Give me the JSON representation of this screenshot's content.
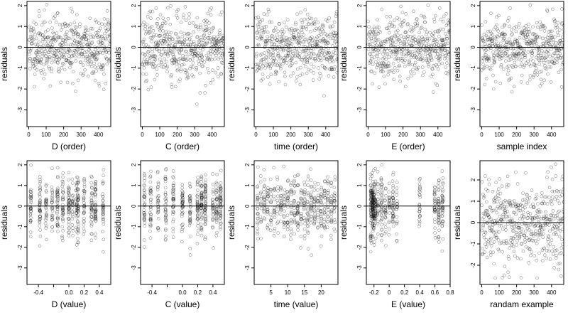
{
  "chart_data": [
    {
      "type": "scatter",
      "xlabel": "D (order)",
      "ylabel": "residuals",
      "xlim": [
        -10,
        470
      ],
      "ylim": [
        -3.8,
        2.2
      ],
      "xticks": [
        0,
        100,
        200,
        300,
        400
      ],
      "yticks": [
        -3,
        -2,
        -1,
        0,
        1,
        2
      ],
      "hline": 0,
      "grid": false,
      "n": 480,
      "seed": 11,
      "x_mode": "index",
      "distribution": "normal-sd-0.75"
    },
    {
      "type": "scatter",
      "xlabel": "C (order)",
      "ylabel": "residuals",
      "xlim": [
        -10,
        470
      ],
      "ylim": [
        -3.8,
        2.2
      ],
      "xticks": [
        0,
        100,
        200,
        300,
        400
      ],
      "yticks": [
        -3,
        -2,
        -1,
        0,
        1,
        2
      ],
      "hline": 0,
      "grid": false,
      "n": 480,
      "seed": 23,
      "x_mode": "index",
      "distribution": "normal-sd-0.75"
    },
    {
      "type": "scatter",
      "xlabel": "time (order)",
      "ylabel": "residuals",
      "xlim": [
        -10,
        470
      ],
      "ylim": [
        -3.8,
        2.2
      ],
      "xticks": [
        0,
        100,
        200,
        300,
        400
      ],
      "yticks": [
        -3,
        -2,
        -1,
        0,
        1,
        2
      ],
      "hline": 0,
      "grid": false,
      "n": 480,
      "seed": 37,
      "x_mode": "index",
      "distribution": "normal-sd-0.75"
    },
    {
      "type": "scatter",
      "xlabel": "E (order)",
      "ylabel": "residuals",
      "xlim": [
        -10,
        470
      ],
      "ylim": [
        -3.8,
        2.2
      ],
      "xticks": [
        0,
        100,
        200,
        300,
        400
      ],
      "yticks": [
        -3,
        -2,
        -1,
        0,
        1,
        2
      ],
      "hline": 0,
      "grid": false,
      "n": 480,
      "seed": 41,
      "x_mode": "index",
      "distribution": "normal-sd-0.75"
    },
    {
      "type": "scatter",
      "xlabel": "sample index",
      "ylabel": "residuals",
      "xlim": [
        -10,
        470
      ],
      "ylim": [
        -3.8,
        2.2
      ],
      "xticks": [
        0,
        100,
        200,
        300,
        400
      ],
      "yticks": [
        -3,
        -2,
        -1,
        0,
        1,
        2
      ],
      "hline": 0,
      "grid": false,
      "n": 480,
      "seed": 53,
      "x_mode": "index",
      "distribution": "normal-sd-0.75"
    },
    {
      "type": "scatter",
      "xlabel": "D (value)",
      "ylabel": "residuals",
      "xlim": [
        -0.55,
        0.55
      ],
      "ylim": [
        -3.8,
        2.2
      ],
      "xticks": [
        -0.4,
        -0.2,
        0.0,
        0.2,
        0.4
      ],
      "xtick_labels": [
        "-0.4",
        "",
        "0.0",
        "0.2",
        "0.4"
      ],
      "yticks": [
        -3,
        -2,
        -1,
        0,
        1,
        2
      ],
      "hline": 0,
      "grid": false,
      "n": 480,
      "seed": 61,
      "x_mode": "clusters",
      "x_clusters": [
        -0.5,
        -0.38,
        -0.3,
        -0.22,
        -0.15,
        -0.08,
        0.0,
        0.05,
        0.1,
        0.12,
        0.2,
        0.3,
        0.35,
        0.45
      ],
      "distribution": "normal-sd-0.75"
    },
    {
      "type": "scatter",
      "xlabel": "C (value)",
      "ylabel": "residuals",
      "xlim": [
        -0.55,
        0.55
      ],
      "ylim": [
        -3.8,
        2.2
      ],
      "xticks": [
        -0.4,
        -0.2,
        0.0,
        0.2,
        0.4
      ],
      "xtick_labels": [
        "-0.4",
        "",
        "0.0",
        "0.2",
        "0.4"
      ],
      "yticks": [
        -3,
        -2,
        -1,
        0,
        1,
        2
      ],
      "hline": 0,
      "grid": false,
      "n": 480,
      "seed": 71,
      "x_mode": "clusters",
      "x_clusters": [
        -0.5,
        -0.42,
        -0.32,
        -0.22,
        -0.12,
        0.0,
        0.1,
        0.2,
        0.25,
        0.3,
        0.4,
        0.45,
        0.5
      ],
      "distribution": "normal-sd-0.75"
    },
    {
      "type": "scatter",
      "xlabel": "time (value)",
      "ylabel": "residuals",
      "xlim": [
        0,
        25
      ],
      "ylim": [
        -3.8,
        2.2
      ],
      "xticks": [
        5,
        10,
        15,
        20
      ],
      "yticks": [
        -3,
        -2,
        -1,
        0,
        1,
        2
      ],
      "hline": 0,
      "grid": false,
      "n": 480,
      "seed": 83,
      "x_mode": "clusters",
      "x_clusters": [
        1,
        2,
        3,
        4,
        5,
        6,
        7,
        8,
        9,
        10,
        11,
        12,
        13,
        14,
        15,
        16,
        17,
        18,
        19,
        20,
        21,
        22,
        23,
        24
      ],
      "distribution": "normal-sd-0.75"
    },
    {
      "type": "scatter",
      "xlabel": "E (value)",
      "ylabel": "residuals",
      "xlim": [
        -0.3,
        0.8
      ],
      "ylim": [
        -3.8,
        2.2
      ],
      "xticks": [
        -0.2,
        0.0,
        0.2,
        0.4,
        0.6,
        0.8
      ],
      "yticks": [
        -3,
        -2,
        -1,
        0,
        1,
        2
      ],
      "hline": 0,
      "grid": false,
      "n": 480,
      "seed": 97,
      "x_mode": "clusters",
      "x_clusters": [
        -0.24,
        -0.22,
        -0.2,
        -0.18,
        -0.22,
        -0.2,
        -0.24,
        -0.15,
        -0.1,
        -0.05,
        0.0,
        0.05,
        0.1,
        0.4,
        0.6,
        0.65,
        0.7
      ],
      "distribution": "normal-sd-0.75"
    },
    {
      "type": "scatter",
      "xlabel": "randam example",
      "ylabel": "residuals",
      "xlim": [
        -10,
        470
      ],
      "ylim": [
        -2.9,
        2.9
      ],
      "xticks": [
        0,
        100,
        200,
        300,
        400
      ],
      "yticks": [
        -2,
        -1,
        0,
        1,
        2
      ],
      "hline": 0,
      "grid": false,
      "n": 480,
      "seed": 109,
      "x_mode": "index",
      "distribution": "normal-sd-1"
    }
  ]
}
